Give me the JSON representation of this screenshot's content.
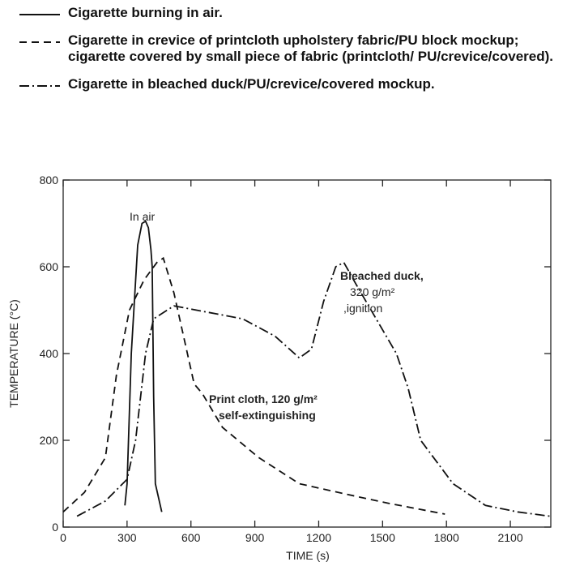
{
  "chart_data": {
    "type": "line",
    "xlabel": "TIME (s)",
    "ylabel": "TEMPERATURE (°C)",
    "xlim": [
      0,
      2290
    ],
    "ylim": [
      0,
      800
    ],
    "xticks": [
      0,
      300,
      600,
      900,
      1200,
      1500,
      1800,
      2100
    ],
    "yticks": [
      0,
      200,
      400,
      600,
      800
    ],
    "grid": false,
    "series": [
      {
        "name": "Cigarette burning in air.",
        "color": "#111111",
        "linestyle": "solid",
        "x": [
          290,
          300,
          320,
          350,
          370,
          387,
          400,
          412,
          418,
          425,
          433,
          463
        ],
        "values": [
          50,
          100,
          400,
          650,
          700,
          705,
          690,
          640,
          600,
          300,
          100,
          35
        ]
      },
      {
        "name": "Cigarette in crevice of printcloth upholstery fabric/PU block mockup; cigarette covered by small piece of fabric (printcloth/ PU/crevice/covered).",
        "color": "#111111",
        "linestyle": "dashed",
        "x": [
          0,
          100,
          198,
          250,
          311,
          380,
          440,
          470,
          520,
          615,
          653,
          748,
          919,
          1109,
          1337,
          1527,
          1793
        ],
        "values": [
          35,
          80,
          160,
          350,
          500,
          570,
          610,
          620,
          540,
          330,
          308,
          230,
          160,
          100,
          75,
          55,
          30
        ]
      },
      {
        "name": "Cigarette in bleached duck/PU/crevice/covered mockup.",
        "color": "#111111",
        "linestyle": "dashdot",
        "x": [
          65,
          198,
          300,
          340,
          387,
          425,
          520,
          843,
          995,
          1109,
          1166,
          1223,
          1280,
          1318,
          1375,
          1470,
          1565,
          1620,
          1679,
          1831,
          1983,
          2134,
          2286
        ],
        "values": [
          25,
          60,
          110,
          200,
          400,
          480,
          510,
          480,
          440,
          390,
          410,
          520,
          600,
          610,
          560,
          480,
          400,
          320,
          200,
          100,
          50,
          35,
          25
        ]
      }
    ],
    "annotations": [
      "In air",
      "Print cloth, 120 g/m²",
      "self-extinguishing",
      "Bleached duck,",
      "320 g/m²",
      ",ignition"
    ]
  }
}
